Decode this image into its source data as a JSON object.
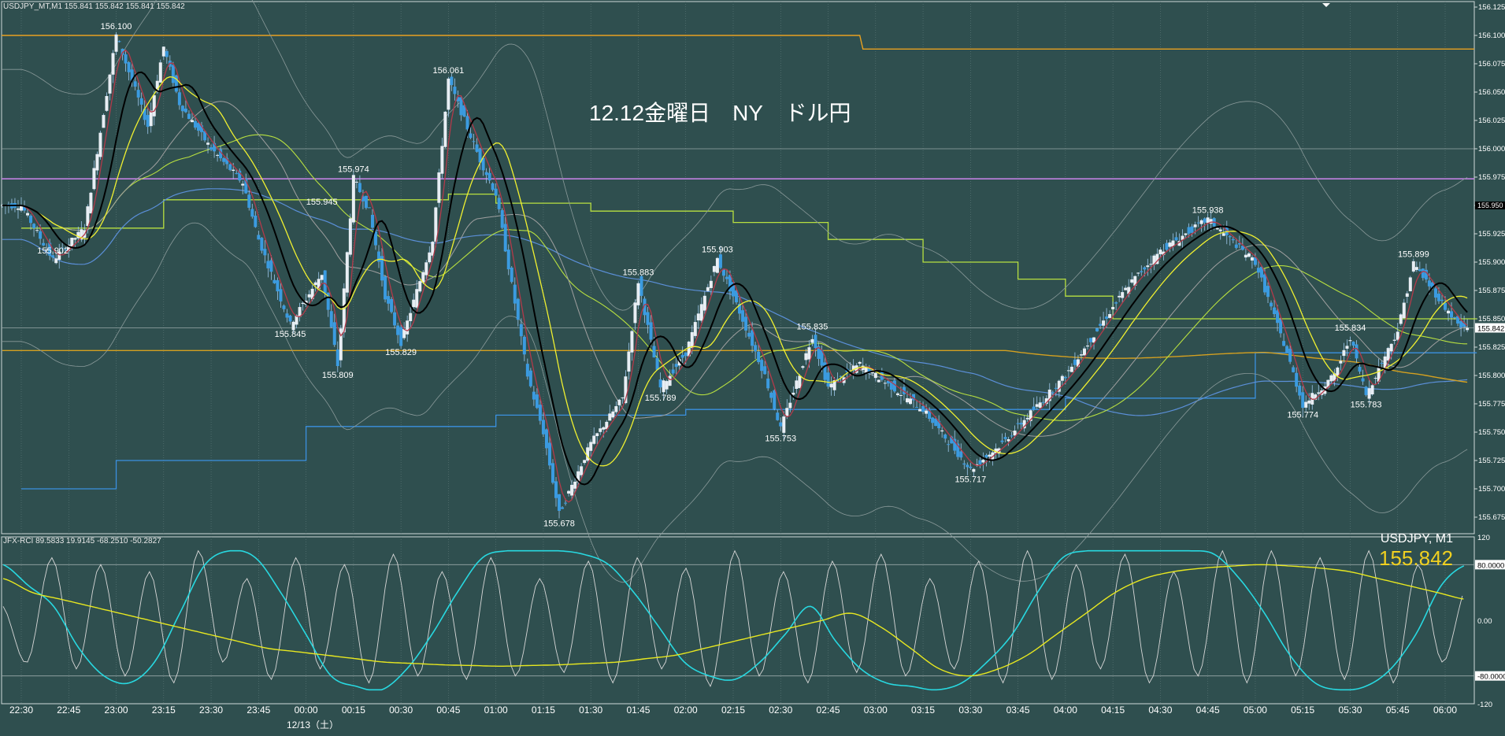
{
  "header": {
    "symbol_info": "USDJPY_MT,M1  155.841 155.842 155.841 155.842",
    "overlay_title": "12.12金曜日　NY　ドル円"
  },
  "subwindow": {
    "indicator_label": "JFX-RCI 89.5833 19.9145 -68.2510 -50.2827",
    "symbol": "USDJPY, M1",
    "last_price": "155.842",
    "scale_labels": [
      "120",
      "80.0000",
      "0.00",
      "-80.0000",
      "-120"
    ]
  },
  "price_axis": {
    "labels": [
      "156.125",
      "156.100",
      "156.075",
      "156.050",
      "156.025",
      "156.000",
      "155.975",
      "155.950",
      "155.925",
      "155.900",
      "155.875",
      "155.850",
      "155.825",
      "155.800",
      "155.775",
      "155.750",
      "155.725",
      "155.700",
      "155.675"
    ],
    "current_price_tag": "155.842",
    "marker_tag": "155.950"
  },
  "time_axis": {
    "labels": [
      "22:30",
      "22:45",
      "23:00",
      "23:15",
      "23:30",
      "23:45",
      "00:00",
      "00:15",
      "00:30",
      "00:45",
      "01:00",
      "01:15",
      "01:30",
      "01:45",
      "02:00",
      "02:15",
      "02:30",
      "02:45",
      "03:00",
      "03:15",
      "03:30",
      "03:45",
      "04:00",
      "04:15",
      "04:30",
      "04:45",
      "05:00",
      "05:15",
      "05:30",
      "05:45",
      "06:00"
    ],
    "date_label": "12/13（土）"
  },
  "colors": {
    "background": "#2f4f4f",
    "candle": "#3b9be0",
    "grid": "#5f7b7b",
    "ema_fast": "#b23a4a",
    "ema_mid": "#000000",
    "ma_yellow": "#f0f030",
    "ma_green": "#b8e040",
    "level_orange": "#e8a020",
    "level_purple": "#c080e0",
    "ma_blue": "#5b8fd8",
    "ichimoku": "#a0a0a0",
    "rci_cyan": "#28d8e0",
    "rci_yellow": "#e8e820",
    "rci_white": "#d8d8d8"
  },
  "chart_data": [
    {
      "type": "candlestick",
      "title": "12.12金曜日　NY　ドル円",
      "symbol": "USDJPY_MT",
      "timeframe": "M1",
      "x_labels": [
        "22:30",
        "22:45",
        "23:00",
        "23:15",
        "23:30",
        "23:45",
        "00:00",
        "00:15",
        "00:30",
        "00:45",
        "01:00",
        "01:15",
        "01:30",
        "01:45",
        "02:00",
        "02:15",
        "02:30",
        "02:45",
        "03:00",
        "03:15",
        "03:30",
        "03:45",
        "04:00",
        "04:15",
        "04:30",
        "04:45",
        "05:00",
        "05:15",
        "05:30",
        "05:45",
        "06:00"
      ],
      "ylim": [
        155.66,
        156.13
      ],
      "price_points": [
        [
          "22:30",
          155.95
        ],
        [
          "22:40",
          155.902
        ],
        [
          "22:50",
          155.93
        ],
        [
          "23:00",
          156.1
        ],
        [
          "23:10",
          156.02
        ],
        [
          "23:15",
          156.09
        ],
        [
          "23:20",
          156.04
        ],
        [
          "23:30",
          156.0
        ],
        [
          "23:40",
          155.97
        ],
        [
          "23:45",
          155.92
        ],
        [
          "23:55",
          155.845
        ],
        [
          "00:05",
          155.89
        ],
        [
          "00:10",
          155.809
        ],
        [
          "00:15",
          155.974
        ],
        [
          "00:20",
          155.945
        ],
        [
          "00:25",
          155.87
        ],
        [
          "00:30",
          155.829
        ],
        [
          "00:40",
          155.92
        ],
        [
          "00:45",
          156.061
        ],
        [
          "00:55",
          155.99
        ],
        [
          "01:00",
          155.96
        ],
        [
          "01:10",
          155.8
        ],
        [
          "01:15",
          155.75
        ],
        [
          "01:20",
          155.678
        ],
        [
          "01:30",
          155.74
        ],
        [
          "01:40",
          155.78
        ],
        [
          "01:45",
          155.883
        ],
        [
          "01:52",
          155.789
        ],
        [
          "02:00",
          155.82
        ],
        [
          "02:10",
          155.903
        ],
        [
          "02:15",
          155.87
        ],
        [
          "02:25",
          155.8
        ],
        [
          "02:30",
          155.753
        ],
        [
          "02:40",
          155.835
        ],
        [
          "02:45",
          155.79
        ],
        [
          "02:55",
          155.81
        ],
        [
          "03:00",
          155.8
        ],
        [
          "03:15",
          155.77
        ],
        [
          "03:30",
          155.717
        ],
        [
          "03:40",
          155.74
        ],
        [
          "03:50",
          155.77
        ],
        [
          "04:00",
          155.8
        ],
        [
          "04:10",
          155.84
        ],
        [
          "04:20",
          155.88
        ],
        [
          "04:30",
          155.91
        ],
        [
          "04:45",
          155.938
        ],
        [
          "05:00",
          155.9
        ],
        [
          "05:10",
          155.82
        ],
        [
          "05:15",
          155.774
        ],
        [
          "05:25",
          155.8
        ],
        [
          "05:30",
          155.834
        ],
        [
          "05:35",
          155.783
        ],
        [
          "05:45",
          155.84
        ],
        [
          "05:50",
          155.899
        ],
        [
          "06:00",
          155.86
        ],
        [
          "06:05",
          155.842
        ]
      ],
      "annotations": [
        {
          "time": "23:00",
          "price": 156.1,
          "label": "156.100"
        },
        {
          "time": "22:40",
          "price": 155.902,
          "label": "155.902"
        },
        {
          "time": "23:55",
          "price": 155.845,
          "label": "155.845"
        },
        {
          "time": "00:10",
          "price": 155.809,
          "label": "155.809"
        },
        {
          "time": "00:15",
          "price": 155.974,
          "label": "155.974"
        },
        {
          "time": "00:05",
          "price": 155.945,
          "label": "155.945"
        },
        {
          "time": "00:30",
          "price": 155.829,
          "label": "155.829"
        },
        {
          "time": "00:45",
          "price": 156.061,
          "label": "156.061"
        },
        {
          "time": "01:20",
          "price": 155.678,
          "label": "155.678"
        },
        {
          "time": "01:45",
          "price": 155.883,
          "label": "155.883"
        },
        {
          "time": "01:52",
          "price": 155.789,
          "label": "155.789"
        },
        {
          "time": "02:10",
          "price": 155.903,
          "label": "155.903"
        },
        {
          "time": "02:30",
          "price": 155.753,
          "label": "155.753"
        },
        {
          "time": "02:40",
          "price": 155.835,
          "label": "155.835"
        },
        {
          "time": "03:30",
          "price": 155.717,
          "label": "155.717"
        },
        {
          "time": "04:45",
          "price": 155.938,
          "label": "155.938"
        },
        {
          "time": "05:15",
          "price": 155.774,
          "label": "155.774"
        },
        {
          "time": "05:30",
          "price": 155.834,
          "label": "155.834"
        },
        {
          "time": "05:35",
          "price": 155.783,
          "label": "155.783"
        },
        {
          "time": "05:50",
          "price": 155.899,
          "label": "155.899"
        }
      ],
      "horizontal_levels": [
        {
          "name": "orange-upper",
          "segments": [
            [
              "22:30",
              "02:55",
              156.1
            ],
            [
              "02:55",
              "06:10",
              156.095
            ]
          ]
        },
        {
          "name": "purple",
          "segments": [
            [
              "22:30",
              "06:10",
              155.974
            ]
          ]
        },
        {
          "name": "grey",
          "segments": [
            [
              "22:30",
              "06:10",
              156.0
            ],
            [
              "22:30",
              "06:10",
              155.842
            ]
          ]
        }
      ],
      "step_lines": [
        {
          "name": "blue-step",
          "points": [
            [
              "22:30",
              155.7
            ],
            [
              "23:00",
              155.7
            ],
            [
              "23:00",
              155.725
            ],
            [
              "00:00",
              155.725
            ],
            [
              "00:00",
              155.755
            ],
            [
              "01:00",
              155.755
            ],
            [
              "01:00",
              155.765
            ],
            [
              "02:00",
              155.765
            ],
            [
              "02:00",
              155.77
            ],
            [
              "04:00",
              155.77
            ],
            [
              "04:00",
              155.78
            ],
            [
              "05:00",
              155.78
            ],
            [
              "05:00",
              155.82
            ],
            [
              "06:10",
              155.82
            ]
          ]
        },
        {
          "name": "green-step",
          "points": [
            [
              "22:30",
              155.93
            ],
            [
              "23:15",
              155.93
            ],
            [
              "23:15",
              155.955
            ],
            [
              "00:45",
              155.955
            ],
            [
              "00:45",
              155.96
            ],
            [
              "01:00",
              155.96
            ],
            [
              "01:00",
              155.952
            ],
            [
              "01:30",
              155.952
            ],
            [
              "01:30",
              155.945
            ],
            [
              "02:15",
              155.945
            ],
            [
              "02:15",
              155.935
            ],
            [
              "02:45",
              155.935
            ],
            [
              "02:45",
              155.92
            ],
            [
              "03:15",
              155.92
            ],
            [
              "03:15",
              155.9
            ],
            [
              "03:45",
              155.9
            ],
            [
              "03:45",
              155.885
            ],
            [
              "04:00",
              155.885
            ],
            [
              "04:00",
              155.87
            ],
            [
              "04:15",
              155.87
            ],
            [
              "04:15",
              155.85
            ],
            [
              "06:10",
              155.85
            ]
          ]
        }
      ]
    },
    {
      "type": "line",
      "title": "JFX-RCI",
      "ylim": [
        -120,
        120
      ],
      "series": [
        {
          "name": "fast",
          "values": [
            20,
            -60,
            90,
            -70,
            80,
            -80,
            70,
            -90,
            100,
            -60,
            60,
            -85,
            90,
            -70,
            80,
            -90,
            95,
            -80,
            70,
            -85,
            90,
            -80,
            60,
            -75,
            85,
            -90,
            90,
            -70,
            75,
            -95,
            100,
            -80,
            70,
            -90,
            85,
            -75,
            95,
            -80,
            60,
            -70,
            85,
            -90,
            100,
            -85,
            80,
            -70,
            95,
            -90,
            70,
            -80,
            100,
            -90,
            100,
            -80,
            90,
            -85,
            100,
            -90,
            80,
            -60,
            50
          ]
        },
        {
          "name": "mid",
          "values": [
            80,
            50,
            20,
            -40,
            -80,
            -90,
            -60,
            10,
            80,
            100,
            90,
            40,
            -20,
            -80,
            -95,
            -100,
            -70,
            -20,
            40,
            90,
            100,
            100,
            100,
            95,
            80,
            40,
            -10,
            -60,
            -80,
            -85,
            -60,
            -20,
            20,
            -30,
            -70,
            -90,
            -95,
            -100,
            -90,
            -60,
            -20,
            40,
            90,
            100,
            100,
            100,
            100,
            100,
            95,
            60,
            10,
            -50,
            -90,
            -100,
            -95,
            -70,
            -20,
            50,
            80
          ]
        },
        {
          "name": "slow",
          "values": [
            60,
            40,
            30,
            20,
            10,
            0,
            -10,
            -20,
            -30,
            -40,
            -45,
            -50,
            -55,
            -60,
            -62,
            -64,
            -65,
            -66,
            -65,
            -64,
            -62,
            -60,
            -55,
            -50,
            -40,
            -30,
            -20,
            -10,
            0,
            10,
            -10,
            -40,
            -70,
            -80,
            -70,
            -50,
            -20,
            10,
            40,
            60,
            70,
            75,
            78,
            80,
            78,
            75,
            70,
            60,
            50,
            40,
            30
          ]
        }
      ]
    }
  ]
}
